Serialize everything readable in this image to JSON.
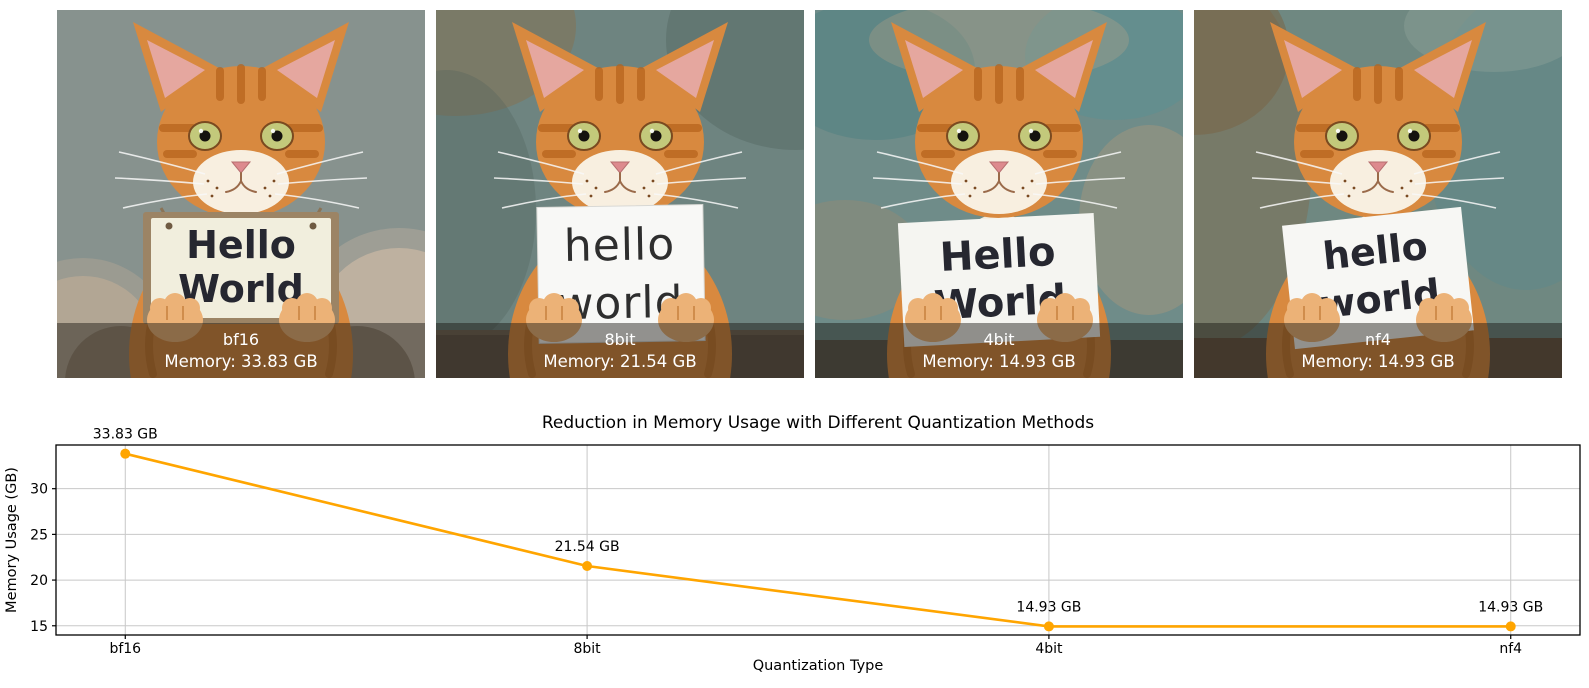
{
  "panels": [
    {
      "method": "bf16",
      "memory": "Memory: 33.83 GB",
      "sign": [
        "Hello",
        "World"
      ]
    },
    {
      "method": "8bit",
      "memory": "Memory: 21.54 GB",
      "sign": [
        "hello",
        "world"
      ]
    },
    {
      "method": "4bit",
      "memory": "Memory: 14.93 GB",
      "sign": [
        "Hello",
        "World"
      ]
    },
    {
      "method": "nf4",
      "memory": "Memory: 14.93 GB",
      "sign": [
        "hello",
        "world"
      ]
    }
  ],
  "chart_data": {
    "type": "line",
    "title": "Reduction in Memory Usage with Different Quantization Methods",
    "xlabel": "Quantization Type",
    "ylabel": "Memory Usage (GB)",
    "categories": [
      "bf16",
      "8bit",
      "4bit",
      "nf4"
    ],
    "values": [
      33.83,
      21.54,
      14.93,
      14.93
    ],
    "point_labels": [
      "33.83 GB",
      "21.54 GB",
      "14.93 GB",
      "14.93 GB"
    ],
    "yticks": [
      15,
      20,
      25,
      30
    ],
    "ylim": [
      13.99,
      34.78
    ],
    "line_color": "#FFA500",
    "marker": "o",
    "grid": true,
    "grid_color": "#c8c8c8",
    "axis_color": "#000000"
  }
}
